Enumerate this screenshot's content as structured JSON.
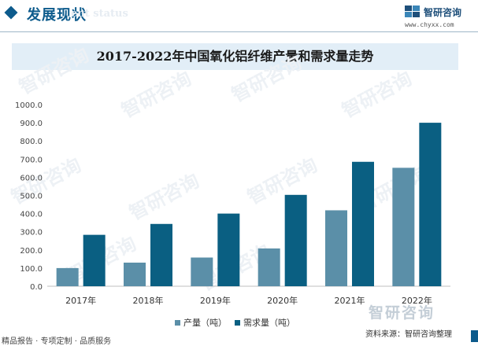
{
  "header": {
    "section_title": "发展现状",
    "section_subtitle": "ent status",
    "brand_name": "智研咨询",
    "brand_url": "www.chyxx.com",
    "accent_color": "#0d5b8c"
  },
  "watermark": {
    "text": "智研咨询"
  },
  "chart_data": {
    "type": "bar",
    "title": "2017-2022年中国氧化铝纤维产量和需求量走势",
    "categories": [
      "2017年",
      "2018年",
      "2019年",
      "2020年",
      "2021年",
      "2022年"
    ],
    "series": [
      {
        "name": "产量（吨）",
        "color": "#5b8fa8",
        "values": [
          100,
          130,
          158,
          208,
          418,
          652
        ]
      },
      {
        "name": "需求量（吨）",
        "color": "#0a5f82",
        "values": [
          283,
          343,
          400,
          503,
          685,
          900
        ]
      }
    ],
    "ylim": [
      0,
      1000
    ],
    "yticks": [
      "0.0",
      "100.0",
      "200.0",
      "300.0",
      "400.0",
      "500.0",
      "600.0",
      "700.0",
      "800.0",
      "900.0",
      "1000.0"
    ],
    "xlabel": "",
    "ylabel": "",
    "grid": false,
    "legend_position": "bottom"
  },
  "footer": {
    "source": "资料来源：智研咨询整理",
    "left_text": "精品报告 · 专项定制 · 品质服务"
  }
}
